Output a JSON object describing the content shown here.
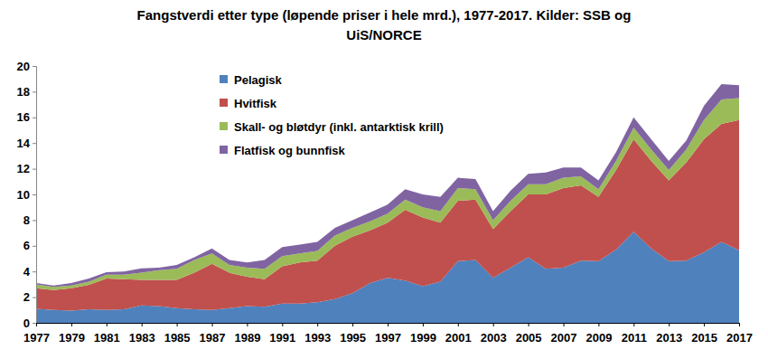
{
  "chart_data": {
    "type": "area",
    "stacked": true,
    "title": "Fangstverdi etter type (løpende priser i hele mrd.), 1977-2017. Kilder: SSB og UiS/NORCE",
    "legend": "top",
    "grid": false,
    "x": [
      1977,
      1978,
      1979,
      1980,
      1981,
      1982,
      1983,
      1984,
      1985,
      1986,
      1987,
      1988,
      1989,
      1990,
      1991,
      1992,
      1993,
      1994,
      1995,
      1996,
      1997,
      1998,
      1999,
      2000,
      2001,
      2002,
      2003,
      2004,
      2005,
      2006,
      2007,
      2008,
      2009,
      2010,
      2011,
      2012,
      2013,
      2014,
      2015,
      2016,
      2017
    ],
    "xlim": [
      1977,
      2017
    ],
    "xticks": [
      1977,
      1979,
      1981,
      1983,
      1985,
      1987,
      1989,
      1991,
      1993,
      1995,
      1997,
      1999,
      2001,
      2003,
      2005,
      2007,
      2009,
      2011,
      2013,
      2015,
      2017
    ],
    "ylim": [
      0,
      20
    ],
    "yticks": [
      0,
      2,
      4,
      6,
      8,
      10,
      12,
      14,
      16,
      18,
      20
    ],
    "series": [
      {
        "name": "Pelagisk",
        "color": "#4F81BD",
        "values": [
          1.1,
          1.0,
          0.95,
          1.05,
          1.0,
          1.05,
          1.35,
          1.3,
          1.15,
          1.05,
          1.0,
          1.15,
          1.3,
          1.25,
          1.5,
          1.5,
          1.6,
          1.85,
          2.3,
          3.1,
          3.5,
          3.3,
          2.85,
          3.2,
          4.8,
          4.9,
          3.5,
          4.3,
          5.1,
          4.2,
          4.3,
          4.85,
          4.8,
          5.7,
          7.1,
          5.8,
          4.8,
          4.85,
          5.5,
          6.3,
          5.65
        ]
      },
      {
        "name": "Hvitfisk",
        "color": "#C0504D",
        "values": [
          1.6,
          1.55,
          1.75,
          1.9,
          2.45,
          2.35,
          2.0,
          2.05,
          2.2,
          2.85,
          3.6,
          2.75,
          2.3,
          2.15,
          2.9,
          3.2,
          3.25,
          4.15,
          4.4,
          4.1,
          4.3,
          5.5,
          5.35,
          4.6,
          4.7,
          4.7,
          3.8,
          4.4,
          4.9,
          5.8,
          6.2,
          5.85,
          5.0,
          6.2,
          7.2,
          6.8,
          6.3,
          7.65,
          8.8,
          9.2,
          10.15
        ]
      },
      {
        "name": "Skall- og bløtdyr (inkl. antarktisk krill)",
        "color": "#9BBB59",
        "values": [
          0.3,
          0.25,
          0.2,
          0.25,
          0.3,
          0.35,
          0.55,
          0.75,
          0.85,
          1.0,
          0.8,
          0.6,
          0.7,
          0.8,
          0.8,
          0.7,
          0.75,
          0.8,
          0.7,
          0.7,
          0.7,
          0.8,
          0.8,
          0.9,
          1.0,
          0.8,
          0.7,
          0.8,
          0.8,
          0.8,
          0.8,
          0.7,
          0.6,
          0.7,
          0.9,
          0.9,
          0.8,
          1.0,
          1.5,
          1.9,
          1.7
        ]
      },
      {
        "name": "Flatfisk og bunnfisk",
        "color": "#8064A2",
        "values": [
          0.1,
          0.1,
          0.2,
          0.25,
          0.2,
          0.25,
          0.35,
          0.2,
          0.3,
          0.2,
          0.4,
          0.4,
          0.4,
          0.7,
          0.7,
          0.7,
          0.7,
          0.6,
          0.6,
          0.7,
          0.7,
          0.8,
          1.0,
          1.1,
          0.8,
          0.8,
          0.7,
          0.8,
          0.8,
          0.9,
          0.8,
          0.7,
          0.7,
          0.7,
          0.8,
          0.8,
          0.7,
          0.7,
          1.1,
          1.2,
          1.0
        ]
      }
    ]
  }
}
